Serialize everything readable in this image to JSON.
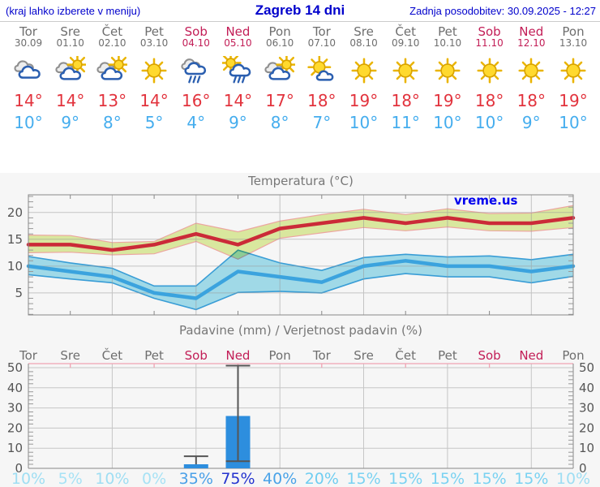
{
  "header": {
    "left_note": "(kraj lahko izberete v meniju)",
    "title": "Zagreb 14 dni",
    "updated": "Zadnja posodobitev: 30.09.2025 - 12:27",
    "text_color": "#0000cc"
  },
  "watermark": {
    "text": "vreme.us",
    "color": "#0000ee"
  },
  "forecast": {
    "weekday_color": "#6e6e6e",
    "weekend_color": "#c21d56",
    "tmax_color": "#e2333d",
    "tmin_color": "#45adee",
    "days": [
      {
        "name": "Tor",
        "date": "30.09",
        "weekend": false,
        "icon": "cloudy",
        "tmax": "14°",
        "tmin": "10°"
      },
      {
        "name": "Sre",
        "date": "01.10",
        "weekend": false,
        "icon": "partly-sunny",
        "tmax": "14°",
        "tmin": "9°"
      },
      {
        "name": "Čet",
        "date": "02.10",
        "weekend": false,
        "icon": "partly-sunny",
        "tmax": "13°",
        "tmin": "8°"
      },
      {
        "name": "Pet",
        "date": "03.10",
        "weekend": false,
        "icon": "sunny",
        "tmax": "14°",
        "tmin": "5°"
      },
      {
        "name": "Sob",
        "date": "04.10",
        "weekend": true,
        "icon": "rain",
        "tmax": "16°",
        "tmin": "4°"
      },
      {
        "name": "Ned",
        "date": "05.10",
        "weekend": true,
        "icon": "sun-rain",
        "tmax": "14°",
        "tmin": "9°"
      },
      {
        "name": "Pon",
        "date": "06.10",
        "weekend": false,
        "icon": "partly-sunny",
        "tmax": "17°",
        "tmin": "8°"
      },
      {
        "name": "Tor",
        "date": "07.10",
        "weekend": false,
        "icon": "mostly-sunny",
        "tmax": "18°",
        "tmin": "7°"
      },
      {
        "name": "Sre",
        "date": "08.10",
        "weekend": false,
        "icon": "sunny",
        "tmax": "19°",
        "tmin": "10°"
      },
      {
        "name": "Čet",
        "date": "09.10",
        "weekend": false,
        "icon": "sunny",
        "tmax": "18°",
        "tmin": "11°"
      },
      {
        "name": "Pet",
        "date": "10.10",
        "weekend": false,
        "icon": "sunny",
        "tmax": "19°",
        "tmin": "10°"
      },
      {
        "name": "Sob",
        "date": "11.10",
        "weekend": true,
        "icon": "sunny",
        "tmax": "18°",
        "tmin": "10°"
      },
      {
        "name": "Ned",
        "date": "12.10",
        "weekend": true,
        "icon": "sunny",
        "tmax": "18°",
        "tmin": "9°"
      },
      {
        "name": "Pon",
        "date": "13.10",
        "weekend": false,
        "icon": "sunny",
        "tmax": "19°",
        "tmin": "10°"
      }
    ]
  },
  "chart_data": [
    {
      "type": "line",
      "title": "Temperatura (°C)",
      "x_labels": [
        "Tor",
        "Sre",
        "Čet",
        "Pet",
        "Sob",
        "Ned",
        "Pon",
        "Tor",
        "Sre",
        "Čet",
        "Pet",
        "Sob",
        "Ned",
        "Pon"
      ],
      "ylim": [
        0.9,
        23.3
      ],
      "yticks": [
        5,
        10,
        15,
        20
      ],
      "grid": true,
      "legend_position": "none",
      "series": [
        {
          "name": "max temperature",
          "color": "#cb2a38",
          "band_fill": "#d9e79e",
          "band_edge": "#eca6a0",
          "values": [
            14,
            14,
            13,
            14,
            16,
            14,
            17,
            18,
            19,
            18,
            19,
            18,
            18,
            19
          ],
          "band_hi": [
            15.8,
            15.7,
            14.4,
            14.6,
            18.0,
            16.4,
            18.4,
            19.6,
            20.6,
            19.6,
            20.7,
            19.8,
            19.9,
            21.3
          ],
          "band_lo": [
            12.5,
            12.6,
            12.1,
            12.3,
            14.6,
            11.3,
            15.2,
            16.2,
            17.2,
            16.6,
            17.3,
            16.6,
            16.5,
            17.2
          ]
        },
        {
          "name": "min temperature",
          "color": "#3ba3de",
          "band_fill": "#a6e1f0",
          "band_edge": "#3ba3de",
          "values": [
            10,
            9,
            8,
            5,
            4,
            9,
            8,
            7,
            10,
            11,
            10,
            10,
            9,
            10
          ],
          "band_hi": [
            11.8,
            10.6,
            9.6,
            6.3,
            6.3,
            13.0,
            10.6,
            9.2,
            11.6,
            12.2,
            11.7,
            11.9,
            11.2,
            12.2
          ],
          "band_lo": [
            8.4,
            7.6,
            6.9,
            4.0,
            1.9,
            5.1,
            5.3,
            5.0,
            7.6,
            8.6,
            8.0,
            8.0,
            6.9,
            8.1
          ]
        }
      ]
    },
    {
      "type": "bar",
      "title": "Padavine (mm) / Verjetnost padavin (%)",
      "categories": [
        "Tor",
        "Sre",
        "Čet",
        "Pet",
        "Sob",
        "Ned",
        "Pon",
        "Tor",
        "Sre",
        "Čet",
        "Pet",
        "Sob",
        "Ned",
        "Pon"
      ],
      "weekend_flags": [
        false,
        false,
        false,
        false,
        true,
        true,
        false,
        false,
        false,
        false,
        false,
        true,
        true,
        false
      ],
      "values": [
        0,
        0,
        0,
        0,
        2,
        26,
        0,
        0,
        0,
        0,
        0,
        0,
        0,
        0
      ],
      "whisker_hi": [
        null,
        null,
        null,
        null,
        6,
        51,
        null,
        null,
        null,
        null,
        null,
        null,
        null,
        null
      ],
      "whisker_lo": [
        null,
        null,
        null,
        null,
        null,
        3.5,
        null,
        null,
        null,
        null,
        null,
        null,
        null,
        null
      ],
      "bar_color": "#2d8ede",
      "whisker_color": "#555555",
      "top_axis_color": "#efa3b2",
      "ylim": [
        0,
        52
      ],
      "yticks": [
        0,
        10,
        20,
        30,
        40,
        50
      ],
      "probabilities": [
        "10%",
        "5%",
        "10%",
        "0%",
        "35%",
        "75%",
        "40%",
        "20%",
        "15%",
        "15%",
        "15%",
        "15%",
        "15%",
        "10%"
      ],
      "prob_colors": [
        "#9fdef3",
        "#a7e2f5",
        "#9fdef3",
        "#a7e2f5",
        "#4aa0e8",
        "#2433cf",
        "#4aa3e8",
        "#6fcdf1",
        "#7ad2f2",
        "#7ad2f2",
        "#7ad2f2",
        "#7ad2f2",
        "#7ad2f2",
        "#9fdef3"
      ]
    }
  ]
}
